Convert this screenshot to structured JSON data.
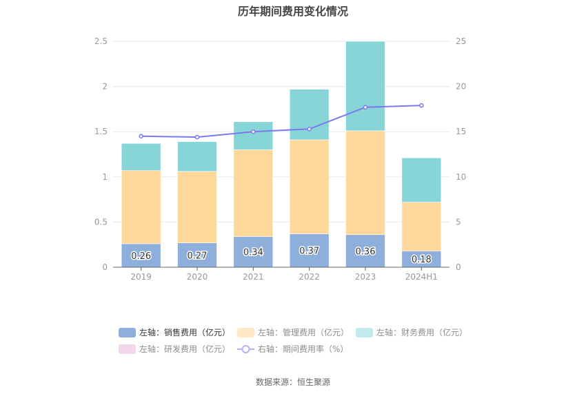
{
  "title": "历年期间费用变化情况",
  "source": "数据来源：恒生聚源",
  "colors": {
    "sales": "#8eaedb",
    "manage": "#fed89b",
    "finance": "#88d5d8",
    "rd": "#f2d8ea",
    "rate": "#7b78ee"
  },
  "chart_data": {
    "type": "bar",
    "stacked": true,
    "title": "历年期间费用变化情况",
    "categories": [
      "2019",
      "2020",
      "2021",
      "2022",
      "2023",
      "2024H1"
    ],
    "series": [
      {
        "name": "左轴：销售费用（亿元）",
        "axis": "left",
        "type": "bar",
        "values": [
          0.26,
          0.27,
          0.34,
          0.37,
          0.36,
          0.18
        ],
        "labels": [
          "0.26",
          "0.27",
          "0.34",
          "0.37",
          "0.36",
          "0.18"
        ]
      },
      {
        "name": "左轴：管理费用（亿元）",
        "axis": "left",
        "type": "bar",
        "values": [
          0.81,
          0.79,
          0.96,
          1.04,
          1.15,
          0.54
        ]
      },
      {
        "name": "左轴：财务费用（亿元）",
        "axis": "left",
        "type": "bar",
        "values": [
          0.3,
          0.33,
          0.31,
          0.56,
          0.99,
          0.49
        ]
      },
      {
        "name": "左轴：研发费用（亿元）",
        "axis": "left",
        "type": "bar",
        "values": [
          0,
          0,
          0,
          0,
          0,
          0
        ]
      },
      {
        "name": "右轴：期间费用率（%）",
        "axis": "right",
        "type": "line",
        "values": [
          14.5,
          14.4,
          15.0,
          15.3,
          17.7,
          17.9
        ]
      }
    ],
    "left_axis": {
      "ylim": [
        0,
        2.5
      ],
      "ticks": [
        "0",
        "0.5",
        "1",
        "1.5",
        "2",
        "2.5"
      ]
    },
    "right_axis": {
      "ylim": [
        0,
        25
      ],
      "ticks": [
        "0",
        "5",
        "10",
        "15",
        "20",
        "25"
      ]
    },
    "grid": true,
    "legend_position": "bottom"
  }
}
